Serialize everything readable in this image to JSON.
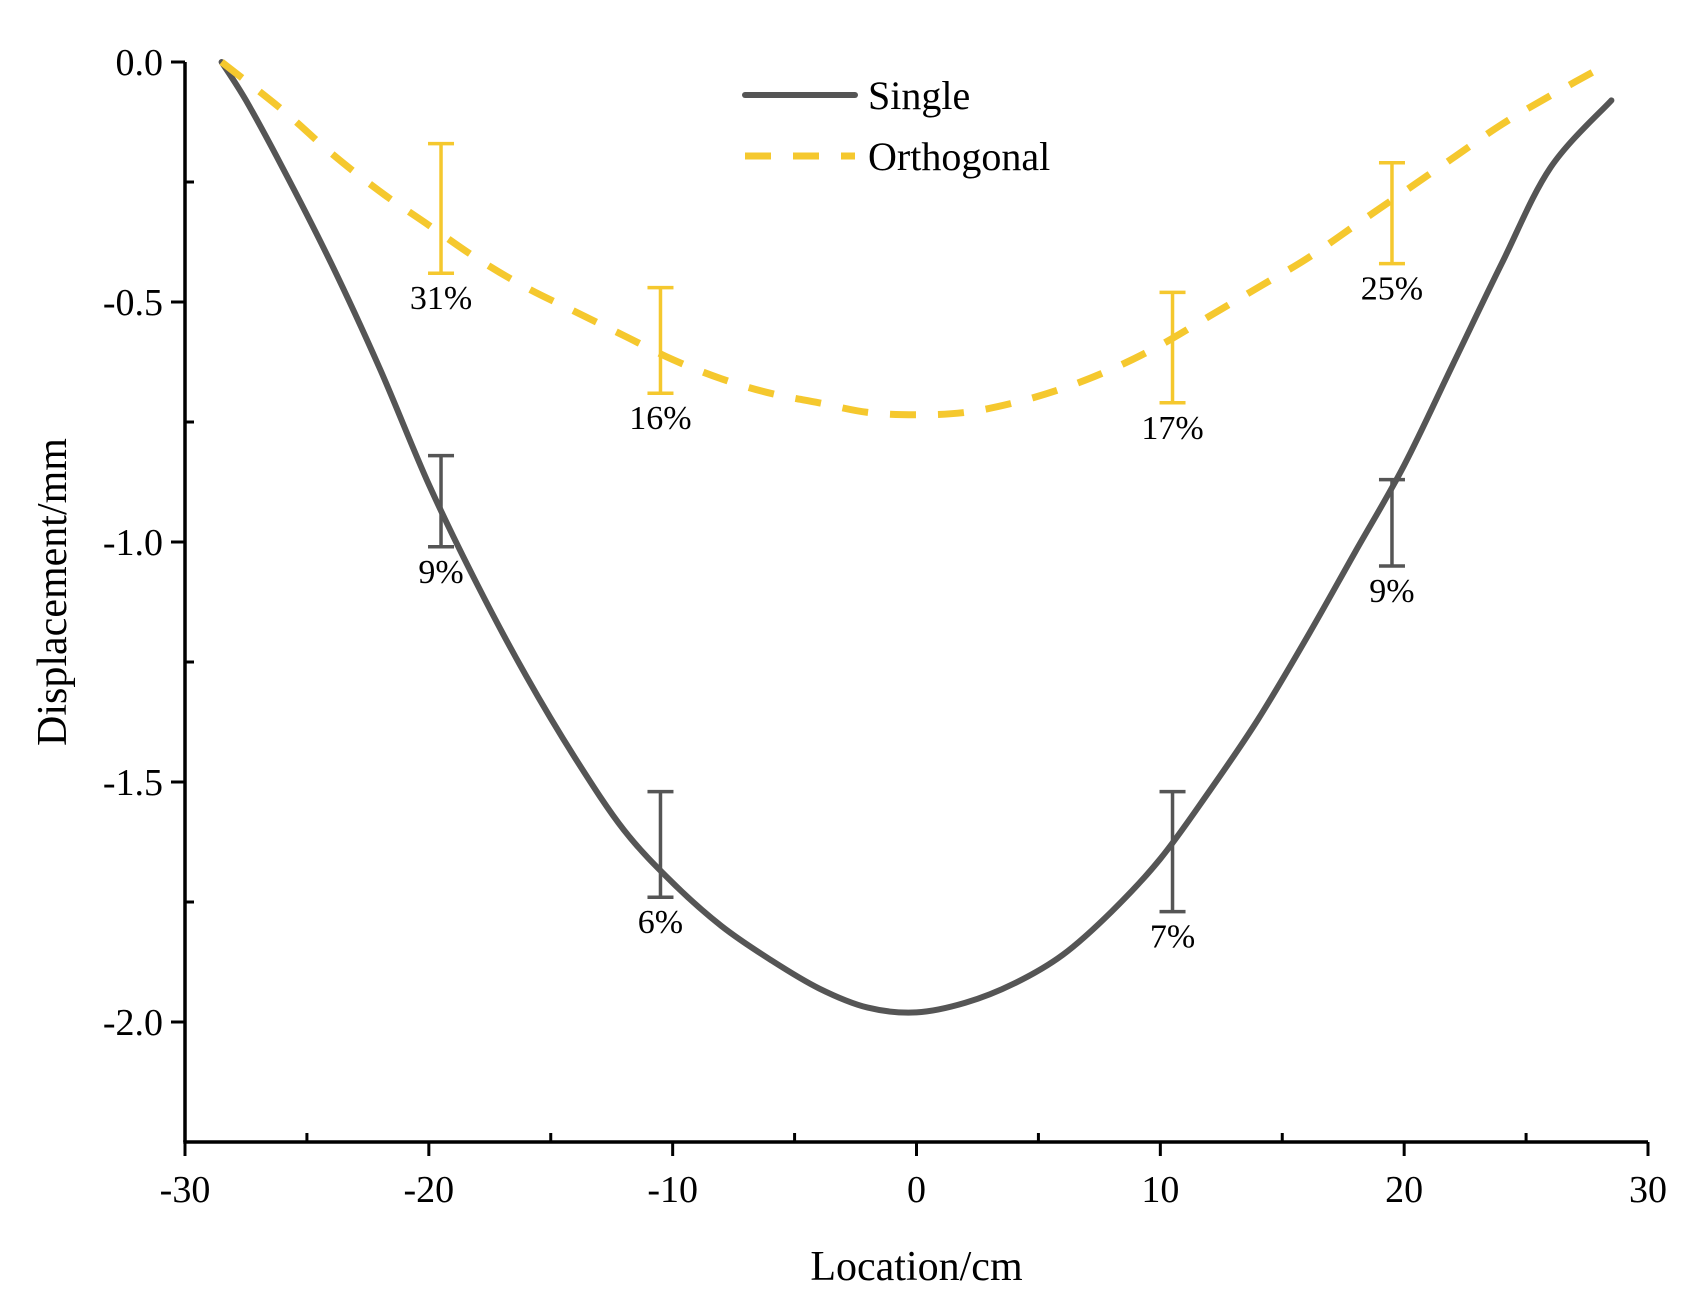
{
  "chart_data": {
    "type": "line",
    "title": "",
    "xlabel": "Location/cm",
    "ylabel": "Displacement/mm",
    "xlim": [
      -30,
      30
    ],
    "ylim": [
      -2.25,
      0
    ],
    "xticks": [
      -30,
      -20,
      -10,
      0,
      10,
      20,
      30
    ],
    "xtick_labels": [
      "-30",
      "-20",
      "-10",
      "0",
      "10",
      "20",
      "30"
    ],
    "yticks": [
      0.0,
      -0.5,
      -1.0,
      -1.5,
      -2.0
    ],
    "ytick_labels": [
      "0.0",
      "-0.5",
      "-1.0",
      "-1.5",
      "-2.0"
    ],
    "legend_position": "top-center",
    "series": [
      {
        "name": "Single",
        "style": "solid",
        "color": "#555555",
        "x": [
          -28.5,
          -27.5,
          -26,
          -24,
          -22,
          -20,
          -18,
          -16,
          -14,
          -12,
          -10,
          -8,
          -6,
          -4,
          -2,
          0,
          2,
          4,
          6,
          8,
          10,
          12,
          14,
          16,
          18,
          20,
          22,
          24,
          26,
          28.5
        ],
        "y": [
          0.0,
          -0.08,
          -0.22,
          -0.42,
          -0.64,
          -0.88,
          -1.09,
          -1.28,
          -1.45,
          -1.6,
          -1.71,
          -1.8,
          -1.87,
          -1.93,
          -1.97,
          -1.98,
          -1.96,
          -1.92,
          -1.86,
          -1.77,
          -1.66,
          -1.52,
          -1.37,
          -1.2,
          -1.02,
          -0.84,
          -0.63,
          -0.42,
          -0.22,
          -0.08
        ],
        "error_bars": [
          {
            "x": -19.5,
            "y": -0.92,
            "lower": -1.01,
            "upper": -0.82,
            "label": "9%"
          },
          {
            "x": -10.5,
            "y": -1.63,
            "lower": -1.74,
            "upper": -1.52,
            "label": "6%"
          },
          {
            "x": 10.5,
            "y": -1.65,
            "lower": -1.77,
            "upper": -1.52,
            "label": "7%"
          },
          {
            "x": 19.5,
            "y": -0.96,
            "lower": -1.05,
            "upper": -0.87,
            "label": "9%"
          }
        ]
      },
      {
        "name": "Orthogonal",
        "style": "dashed",
        "color": "#f5c82e",
        "x": [
          -28.5,
          -26,
          -24,
          -22,
          -20,
          -18,
          -16,
          -14,
          -12,
          -10,
          -8,
          -6,
          -4,
          -2,
          0,
          2,
          4,
          6,
          8,
          10,
          12,
          14,
          16,
          18,
          20,
          22,
          24,
          26,
          28.5
        ],
        "y": [
          0.0,
          -0.1,
          -0.19,
          -0.27,
          -0.34,
          -0.41,
          -0.47,
          -0.52,
          -0.57,
          -0.62,
          -0.66,
          -0.69,
          -0.71,
          -0.73,
          -0.735,
          -0.73,
          -0.71,
          -0.68,
          -0.64,
          -0.59,
          -0.53,
          -0.47,
          -0.41,
          -0.34,
          -0.27,
          -0.2,
          -0.13,
          -0.07,
          0.0
        ],
        "error_bars": [
          {
            "x": -19.5,
            "y": -0.3,
            "lower": -0.44,
            "upper": -0.17,
            "label": "31%"
          },
          {
            "x": -10.5,
            "y": -0.58,
            "lower": -0.69,
            "upper": -0.47,
            "label": "16%"
          },
          {
            "x": 10.5,
            "y": -0.59,
            "lower": -0.71,
            "upper": -0.48,
            "label": "17%"
          },
          {
            "x": 19.5,
            "y": -0.31,
            "lower": -0.42,
            "upper": -0.21,
            "label": "25%"
          }
        ]
      }
    ]
  }
}
